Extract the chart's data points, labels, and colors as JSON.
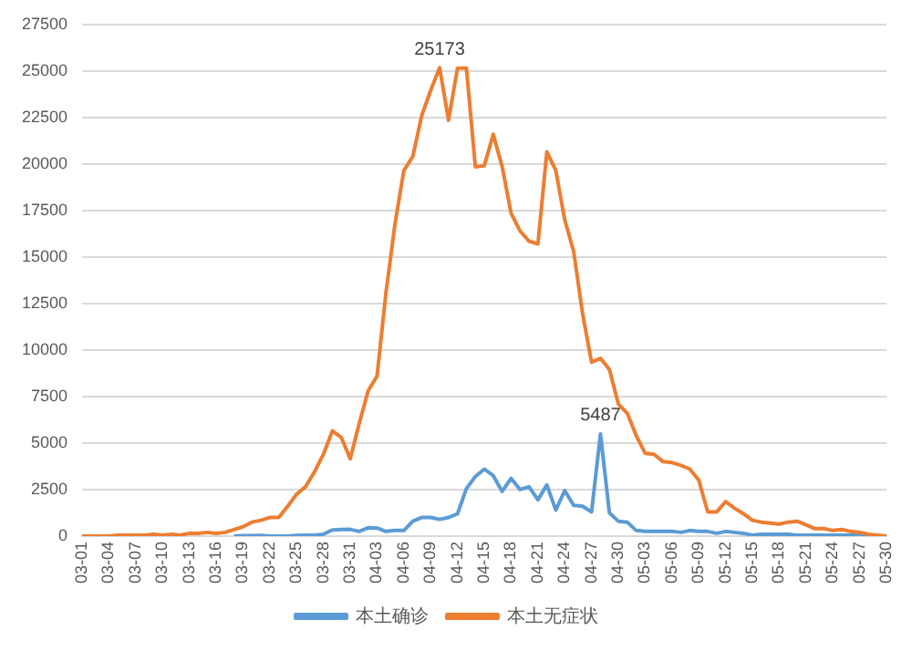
{
  "chart_data": {
    "type": "line",
    "categories": [
      "03-01",
      null,
      null,
      "03-04",
      null,
      null,
      "03-07",
      null,
      null,
      "03-10",
      null,
      null,
      "03-13",
      null,
      null,
      "03-16",
      null,
      null,
      "03-19",
      null,
      null,
      "03-22",
      null,
      null,
      "03-25",
      null,
      null,
      "03-28",
      null,
      null,
      "03-31",
      null,
      null,
      "04-03",
      null,
      null,
      "04-06",
      null,
      null,
      "04-09",
      null,
      null,
      "04-12",
      null,
      null,
      "04-15",
      null,
      null,
      "04-18",
      null,
      null,
      "04-21",
      null,
      null,
      "04-24",
      null,
      null,
      "04-27",
      null,
      null,
      "04-30",
      null,
      null,
      "05-03",
      null,
      null,
      "05-06",
      null,
      null,
      "05-09",
      null,
      null,
      "05-12",
      null,
      null,
      "05-15",
      null,
      null,
      "05-18",
      null,
      null,
      "05-21",
      null,
      null,
      "05-24",
      null,
      null,
      "05-27",
      null,
      null,
      "05-30"
    ],
    "series": [
      {
        "name": "本土确诊",
        "color": "#5b9bd5",
        "values": [
          null,
          null,
          null,
          null,
          null,
          null,
          null,
          null,
          null,
          null,
          null,
          null,
          null,
          null,
          null,
          null,
          null,
          0,
          20,
          20,
          30,
          0,
          0,
          0,
          40,
          50,
          50,
          100,
          330,
          350,
          360,
          250,
          450,
          430,
          250,
          300,
          300,
          800,
          1000,
          1000,
          900,
          1000,
          1200,
          2550,
          3200,
          3600,
          3250,
          2400,
          3100,
          2500,
          2650,
          1950,
          2750,
          1400,
          2450,
          1650,
          1600,
          1300,
          5487,
          1250,
          800,
          750,
          300,
          250,
          250,
          250,
          250,
          200,
          300,
          250,
          250,
          150,
          250,
          200,
          150,
          50,
          100,
          100,
          100,
          100,
          50,
          50,
          50,
          50,
          50,
          50,
          50,
          50,
          0,
          0,
          0
        ],
        "value_labels": [
          null,
          null,
          null,
          null,
          null,
          null,
          null,
          null,
          null,
          null,
          null,
          null,
          null,
          null,
          null,
          null,
          null,
          null,
          null,
          null,
          null,
          null,
          null,
          null,
          null,
          null,
          null,
          null,
          null,
          null,
          null,
          null,
          null,
          null,
          null,
          null,
          null,
          null,
          null,
          null,
          null,
          null,
          null,
          null,
          null,
          null,
          null,
          null,
          null,
          null,
          null,
          null,
          null,
          null,
          null,
          null,
          null,
          null,
          "5487",
          null,
          null,
          null,
          null,
          null,
          null,
          null,
          null,
          null,
          null,
          null,
          null,
          null,
          null,
          null,
          null,
          null,
          null,
          null,
          null,
          null,
          null,
          null,
          null,
          null,
          null,
          null,
          null,
          null,
          null,
          null,
          null
        ]
      },
      {
        "name": "本土无症状",
        "color": "#ed7d31",
        "values": [
          0,
          0,
          0,
          0,
          50,
          50,
          50,
          50,
          100,
          50,
          100,
          50,
          150,
          150,
          200,
          150,
          200,
          350,
          500,
          750,
          850,
          1000,
          1000,
          1600,
          2250,
          2650,
          3450,
          4400,
          5650,
          5300,
          4150,
          6050,
          7800,
          8600,
          13100,
          16750,
          19650,
          20400,
          22600,
          23950,
          25173,
          22350,
          25150,
          25150,
          19850,
          19900,
          21600,
          19850,
          17350,
          16400,
          15850,
          15700,
          20650,
          19650,
          17000,
          15300,
          11950,
          9350,
          9550,
          8950,
          7100,
          6600,
          5400,
          4450,
          4400,
          4000,
          3950,
          3800,
          3600,
          3000,
          1300,
          1300,
          1850,
          1500,
          1200,
          850,
          750,
          700,
          650,
          750,
          800,
          600,
          400,
          400,
          300,
          350,
          250,
          200,
          100,
          50,
          0
        ],
        "value_labels": [
          null,
          null,
          null,
          null,
          null,
          null,
          null,
          null,
          null,
          null,
          null,
          null,
          null,
          null,
          null,
          null,
          null,
          null,
          null,
          null,
          null,
          null,
          null,
          null,
          null,
          null,
          null,
          null,
          null,
          null,
          null,
          null,
          null,
          null,
          null,
          null,
          null,
          null,
          null,
          null,
          "25173",
          null,
          null,
          null,
          null,
          null,
          null,
          null,
          null,
          null,
          null,
          null,
          null,
          null,
          null,
          null,
          null,
          null,
          null,
          null,
          null,
          null,
          null,
          null,
          null,
          null,
          null,
          null,
          null,
          null,
          null,
          null,
          null,
          null,
          null,
          null,
          null,
          null,
          null,
          null,
          null,
          null,
          null,
          null,
          null,
          null,
          null,
          null,
          null,
          null,
          null
        ]
      }
    ],
    "ylim": [
      0,
      27500
    ],
    "yticks": [
      0,
      2500,
      5000,
      7500,
      10000,
      12500,
      15000,
      17500,
      20000,
      22500,
      25000,
      27500
    ],
    "grid": "y",
    "legend": "bottom",
    "marker": "none",
    "line_style": "solid"
  }
}
